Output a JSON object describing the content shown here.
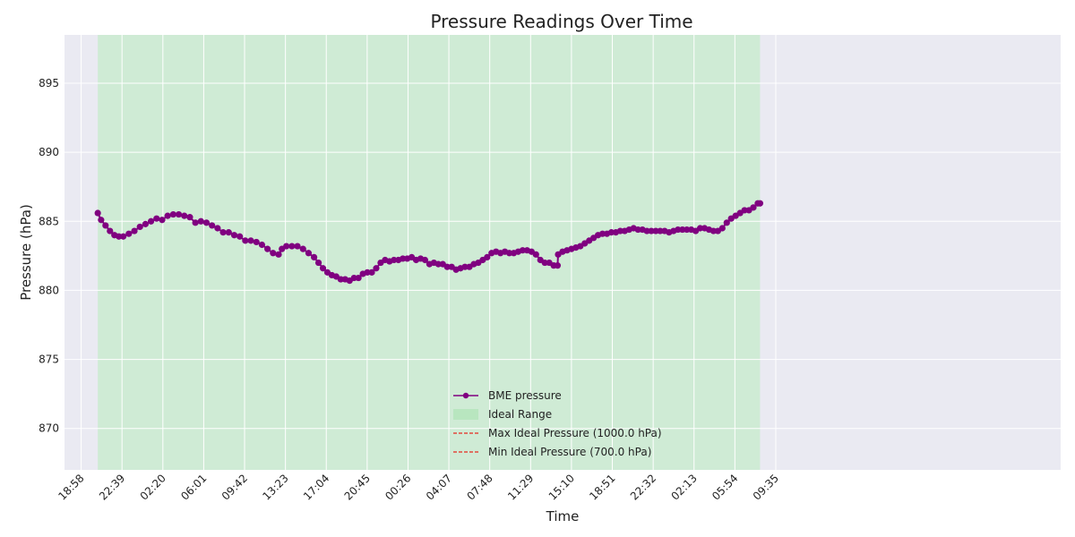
{
  "chart_data": {
    "type": "line",
    "title": "Pressure Readings Over Time",
    "xlabel": "Time",
    "ylabel": "Pressure (hPa)",
    "x_unit": "hours",
    "xlim": [
      -1.5,
      88.3
    ],
    "ylim": [
      867.0,
      898.5
    ],
    "x_ticks": [
      {
        "x": 0.0,
        "label": "18:58"
      },
      {
        "x": 3.683,
        "label": "22:39"
      },
      {
        "x": 7.367,
        "label": "02:20"
      },
      {
        "x": 11.05,
        "label": "06:01"
      },
      {
        "x": 14.733,
        "label": "09:42"
      },
      {
        "x": 18.417,
        "label": "13:23"
      },
      {
        "x": 22.1,
        "label": "17:04"
      },
      {
        "x": 25.783,
        "label": "20:45"
      },
      {
        "x": 29.467,
        "label": "00:26"
      },
      {
        "x": 33.15,
        "label": "04:07"
      },
      {
        "x": 36.833,
        "label": "07:48"
      },
      {
        "x": 40.517,
        "label": "11:29"
      },
      {
        "x": 44.2,
        "label": "15:10"
      },
      {
        "x": 47.883,
        "label": "18:51"
      },
      {
        "x": 51.567,
        "label": "22:32"
      },
      {
        "x": 55.25,
        "label": "02:13"
      },
      {
        "x": 58.933,
        "label": "05:54"
      },
      {
        "x": 62.617,
        "label": "09:35"
      }
    ],
    "y_ticks": [
      870,
      875,
      880,
      885,
      890,
      895
    ],
    "grid": true,
    "legend_position": "bottom-center",
    "ideal_range": {
      "label": "Ideal Range",
      "y_min": 700.0,
      "y_max": 1000.0,
      "color": "#b8e6bf"
    },
    "ideal_lines": [
      {
        "label": "Max Ideal Pressure (1000.0 hPa)",
        "value": 1000.0,
        "color": "#e8281e"
      },
      {
        "label": "Min Ideal Pressure (700.0 hPa)",
        "value": 700.0,
        "color": "#e8281e"
      }
    ],
    "series": [
      {
        "name": "BME pressure",
        "color": "#800080",
        "points": [
          [
            1.5,
            885.6
          ],
          [
            1.8,
            885.1
          ],
          [
            2.2,
            884.7
          ],
          [
            2.6,
            884.3
          ],
          [
            3.0,
            884.0
          ],
          [
            3.4,
            883.9
          ],
          [
            3.8,
            883.9
          ],
          [
            4.3,
            884.1
          ],
          [
            4.8,
            884.3
          ],
          [
            5.3,
            884.6
          ],
          [
            5.8,
            884.8
          ],
          [
            6.3,
            885.0
          ],
          [
            6.8,
            885.2
          ],
          [
            7.3,
            885.1
          ],
          [
            7.8,
            885.4
          ],
          [
            8.3,
            885.5
          ],
          [
            8.8,
            885.5
          ],
          [
            9.3,
            885.4
          ],
          [
            9.8,
            885.3
          ],
          [
            10.3,
            884.9
          ],
          [
            10.8,
            885.0
          ],
          [
            11.3,
            884.9
          ],
          [
            11.8,
            884.7
          ],
          [
            12.3,
            884.5
          ],
          [
            12.8,
            884.2
          ],
          [
            13.3,
            884.2
          ],
          [
            13.8,
            884.0
          ],
          [
            14.3,
            883.9
          ],
          [
            14.8,
            883.6
          ],
          [
            15.3,
            883.6
          ],
          [
            15.8,
            883.5
          ],
          [
            16.3,
            883.3
          ],
          [
            16.8,
            883.0
          ],
          [
            17.3,
            882.7
          ],
          [
            17.8,
            882.6
          ],
          [
            18.1,
            883.0
          ],
          [
            18.5,
            883.2
          ],
          [
            19.0,
            883.2
          ],
          [
            19.5,
            883.2
          ],
          [
            20.0,
            883.0
          ],
          [
            20.5,
            882.7
          ],
          [
            21.0,
            882.4
          ],
          [
            21.4,
            882.0
          ],
          [
            21.8,
            881.6
          ],
          [
            22.2,
            881.3
          ],
          [
            22.6,
            881.1
          ],
          [
            23.0,
            881.0
          ],
          [
            23.4,
            880.8
          ],
          [
            23.8,
            880.8
          ],
          [
            24.2,
            880.7
          ],
          [
            24.6,
            880.9
          ],
          [
            25.0,
            880.9
          ],
          [
            25.4,
            881.2
          ],
          [
            25.8,
            881.3
          ],
          [
            26.2,
            881.3
          ],
          [
            26.6,
            881.6
          ],
          [
            27.0,
            882.0
          ],
          [
            27.4,
            882.2
          ],
          [
            27.8,
            882.1
          ],
          [
            28.2,
            882.2
          ],
          [
            28.6,
            882.2
          ],
          [
            29.0,
            882.3
          ],
          [
            29.4,
            882.3
          ],
          [
            29.8,
            882.4
          ],
          [
            30.2,
            882.2
          ],
          [
            30.6,
            882.3
          ],
          [
            31.0,
            882.2
          ],
          [
            31.4,
            881.9
          ],
          [
            31.8,
            882.0
          ],
          [
            32.2,
            881.9
          ],
          [
            32.6,
            881.9
          ],
          [
            33.0,
            881.7
          ],
          [
            33.4,
            881.7
          ],
          [
            33.8,
            881.5
          ],
          [
            34.2,
            881.6
          ],
          [
            34.6,
            881.7
          ],
          [
            35.0,
            881.7
          ],
          [
            35.4,
            881.9
          ],
          [
            35.8,
            882.0
          ],
          [
            36.2,
            882.2
          ],
          [
            36.6,
            882.4
          ],
          [
            37.0,
            882.7
          ],
          [
            37.4,
            882.8
          ],
          [
            37.8,
            882.7
          ],
          [
            38.2,
            882.8
          ],
          [
            38.6,
            882.7
          ],
          [
            39.0,
            882.7
          ],
          [
            39.4,
            882.8
          ],
          [
            39.8,
            882.9
          ],
          [
            40.2,
            882.9
          ],
          [
            40.6,
            882.8
          ],
          [
            41.0,
            882.6
          ],
          [
            41.4,
            882.2
          ],
          [
            41.8,
            882.0
          ],
          [
            42.2,
            882.0
          ],
          [
            42.6,
            881.8
          ],
          [
            42.95,
            881.8
          ],
          [
            43.0,
            882.6
          ],
          [
            43.4,
            882.8
          ],
          [
            43.8,
            882.9
          ],
          [
            44.2,
            883.0
          ],
          [
            44.6,
            883.1
          ],
          [
            45.0,
            883.2
          ],
          [
            45.4,
            883.4
          ],
          [
            45.8,
            883.6
          ],
          [
            46.2,
            883.8
          ],
          [
            46.6,
            884.0
          ],
          [
            47.0,
            884.1
          ],
          [
            47.4,
            884.1
          ],
          [
            47.8,
            884.2
          ],
          [
            48.2,
            884.2
          ],
          [
            48.6,
            884.3
          ],
          [
            49.0,
            884.3
          ],
          [
            49.4,
            884.4
          ],
          [
            49.8,
            884.5
          ],
          [
            50.2,
            884.4
          ],
          [
            50.6,
            884.4
          ],
          [
            51.0,
            884.3
          ],
          [
            51.4,
            884.3
          ],
          [
            51.8,
            884.3
          ],
          [
            52.2,
            884.3
          ],
          [
            52.6,
            884.3
          ],
          [
            53.0,
            884.2
          ],
          [
            53.4,
            884.3
          ],
          [
            53.8,
            884.4
          ],
          [
            54.2,
            884.4
          ],
          [
            54.6,
            884.4
          ],
          [
            55.0,
            884.4
          ],
          [
            55.4,
            884.3
          ],
          [
            55.8,
            884.5
          ],
          [
            56.2,
            884.5
          ],
          [
            56.6,
            884.4
          ],
          [
            57.0,
            884.3
          ],
          [
            57.4,
            884.3
          ],
          [
            57.8,
            884.5
          ],
          [
            58.2,
            884.9
          ],
          [
            58.6,
            885.2
          ],
          [
            59.0,
            885.4
          ],
          [
            59.4,
            885.6
          ],
          [
            59.8,
            885.8
          ],
          [
            60.2,
            885.8
          ],
          [
            60.6,
            886.0
          ],
          [
            61.0,
            886.3
          ],
          [
            61.2,
            886.3
          ]
        ]
      }
    ]
  }
}
